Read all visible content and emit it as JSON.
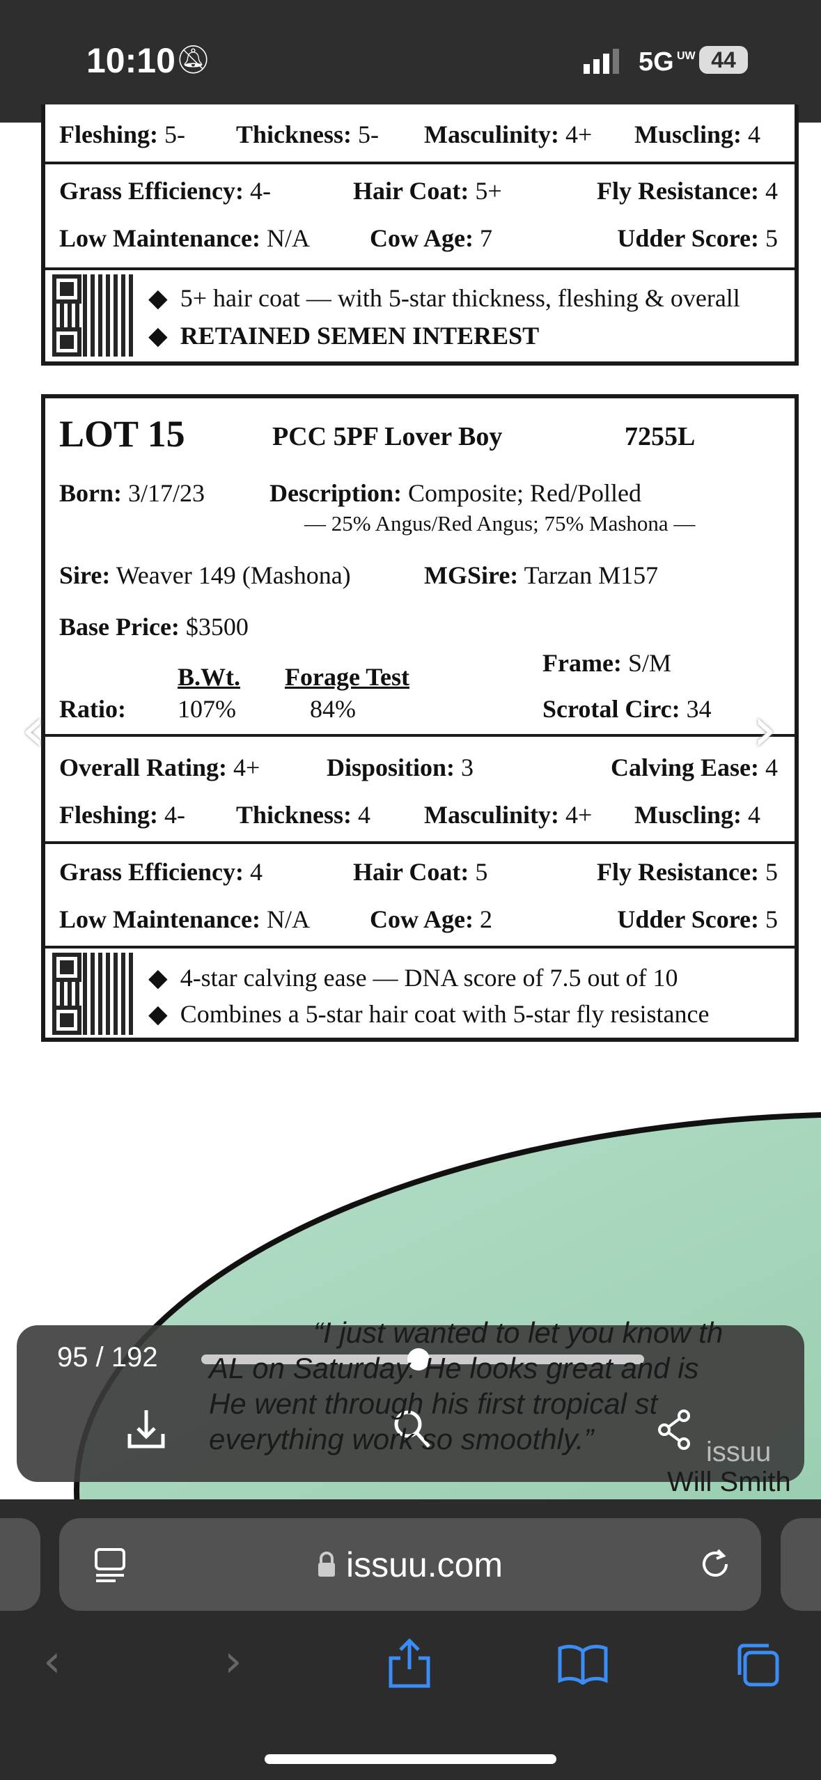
{
  "status_bar": {
    "time": "10:10",
    "network": "5G",
    "network_sub": "UW",
    "battery": "44"
  },
  "lot14_partial": {
    "row_traits": [
      "Fleshing:",
      "5-",
      "Thickness:",
      "5-",
      "Masculinity:",
      "4+",
      "Muscling:",
      "4"
    ],
    "grass": {
      "label": "Grass Efficiency:",
      "value": "4-"
    },
    "hair": {
      "label": "Hair Coat:",
      "value": "5+"
    },
    "fly": {
      "label": "Fly Resistance:",
      "value": "4"
    },
    "lowm": {
      "label": "Low Maintenance:",
      "value": "N/A"
    },
    "cow": {
      "label": "Cow Age:",
      "value": "7"
    },
    "udder": {
      "label": "Udder Score:",
      "value": "5"
    },
    "bullets": [
      "5+ hair coat — with 5-star thickness, fleshing & overall",
      "RETAINED SEMEN INTEREST"
    ]
  },
  "lot15": {
    "lot": "LOT 15",
    "name": "PCC 5PF Lover Boy",
    "id": "7255L",
    "born_label": "Born:",
    "born": "3/17/23",
    "desc_label": "Description:",
    "desc": "Composite; Red/Polled",
    "desc_sub": "— 25% Angus/Red Angus; 75% Mashona —",
    "sire_label": "Sire:",
    "sire": "Weaver 149 (Mashona)",
    "mgsire_label": "MGSire:",
    "mgsire": "Tarzan M157",
    "base_label": "Base Price:",
    "base": "$3500",
    "frame_label": "Frame:",
    "frame": "S/M",
    "scrotal_label": "Scrotal Circ:",
    "scrotal": "34",
    "bwt_label": "B.Wt.",
    "forage_label": "Forage Test",
    "ratio_label": "Ratio:",
    "bwt": "107%",
    "forage": "84%",
    "overall": {
      "label": "Overall Rating:",
      "value": "4+"
    },
    "disp": {
      "label": "Disposition:",
      "value": "3"
    },
    "calving": {
      "label": "Calving Ease:",
      "value": "4"
    },
    "fleshing": {
      "label": "Fleshing:",
      "value": "4-"
    },
    "thick": {
      "label": "Thickness:",
      "value": "4"
    },
    "masc": {
      "label": "Masculinity:",
      "value": "4+"
    },
    "musc": {
      "label": "Muscling:",
      "value": "4"
    },
    "grass": {
      "label": "Grass Efficiency:",
      "value": "4"
    },
    "hair": {
      "label": "Hair Coat:",
      "value": "5"
    },
    "fly": {
      "label": "Fly Resistance:",
      "value": "5"
    },
    "lowm": {
      "label": "Low Maintenance:",
      "value": "N/A"
    },
    "cow": {
      "label": "Cow Age:",
      "value": "2"
    },
    "udder": {
      "label": "Udder Score:",
      "value": "5"
    },
    "bullets": [
      "4-star calving ease — DNA score of 7.5 out of 10",
      "Combines a 5-star hair coat with 5-star fly resistance"
    ]
  },
  "testimonial": {
    "lines": [
      "“I just wanted to let you know th",
      "AL on Saturday.   He looks great and is",
      "He went through his first tropical st",
      "everything work so smoothly.”"
    ],
    "author": "Will Smith"
  },
  "viewer": {
    "page": "95 / 192",
    "progress": 0.49,
    "brand": "issuu"
  },
  "browser": {
    "url": "issuu.com"
  },
  "colors": {
    "accent": "#3b8cf5",
    "green": "#a9d8bf"
  }
}
